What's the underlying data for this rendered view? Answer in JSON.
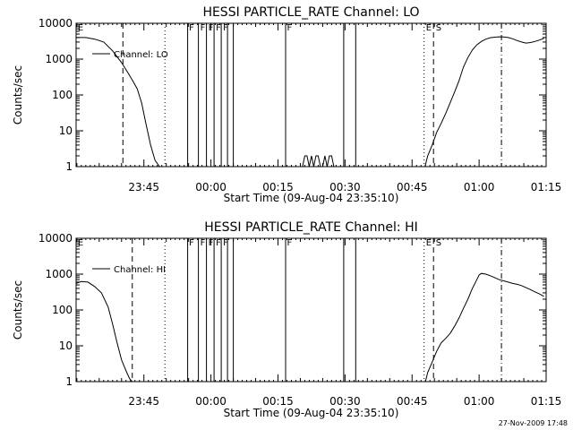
{
  "footer_timestamp": "27-Nov-2009 17:48",
  "chart_data": [
    {
      "type": "line",
      "title": "HESSI PARTICLE_RATE Channel: LO",
      "ylabel": "Counts/sec",
      "xlabel": "Start Time (09-Aug-04 23:35:10)",
      "xlim": [
        -5.17,
        100.0
      ],
      "ylim": [
        1,
        10000
      ],
      "yscale": "log",
      "xtick_values": [
        10,
        25,
        40,
        55,
        70,
        85,
        100
      ],
      "xtick_labels": [
        "23:45",
        "00:00",
        "00:15",
        "00:30",
        "00:45",
        "01:00",
        "01:15"
      ],
      "ytick_values": [
        1,
        10,
        100,
        1000,
        10000
      ],
      "ytick_labels": [
        "1",
        "10",
        "100",
        "1000",
        "10000"
      ],
      "legend": {
        "label": "Channel: LO",
        "placement": "top-left"
      },
      "series": [
        {
          "name": "Channel: LO",
          "x": [
            -5.2,
            -3.0,
            -1.0,
            1.0,
            3.0,
            5.0,
            6.5,
            7.5,
            8.5,
            9.5,
            10.5,
            11.5,
            12.5,
            13.5
          ],
          "y": [
            4000,
            4000,
            3600,
            3000,
            1700,
            800,
            400,
            250,
            150,
            60,
            15,
            4,
            1.5,
            1
          ]
        },
        {
          "name": "",
          "x": [
            19.8,
            19.8,
            22.2,
            22.2,
            24.0,
            24.0,
            25.7,
            25.7,
            27.3,
            27.3,
            28.7,
            28.7,
            30.0,
            30.0,
            41.7,
            41.7,
            54.7,
            54.7,
            57.4,
            57.4
          ],
          "y": [
            1,
            10000,
            10000,
            1,
            1,
            10000,
            10000,
            1,
            1,
            10000,
            10000,
            1,
            1,
            10000,
            10000,
            1,
            1,
            10000,
            10000,
            1
          ]
        },
        {
          "name": "",
          "x": [
            44.5,
            45.5,
            46.0,
            46.5,
            47.0,
            47.5,
            48.0,
            48.5,
            49.0,
            49.5,
            50.0,
            50.5,
            51.0,
            51.5,
            52.0,
            52.5,
            53.0
          ],
          "y": [
            1,
            1,
            2,
            2,
            1,
            2,
            1,
            2,
            2,
            1,
            1,
            2,
            1,
            2,
            2,
            1,
            1
          ]
        },
        {
          "name": "",
          "x": [
            72.9,
            73.5,
            74.5,
            75.5,
            76.5,
            77.5,
            78.5,
            79.5,
            80.5,
            81.5,
            82.5,
            83.5,
            84.5,
            85.5,
            86.5,
            87.5,
            88.5,
            89.5,
            90.5,
            91.5,
            92.5,
            93.5,
            94.5,
            95.5,
            96.5,
            97.5,
            98.5,
            99.5
          ],
          "y": [
            1,
            2,
            4,
            9,
            16,
            30,
            60,
            120,
            250,
            600,
            1100,
            1800,
            2500,
            3100,
            3600,
            3950,
            4100,
            4200,
            4150,
            4000,
            3700,
            3300,
            3000,
            2800,
            2900,
            3100,
            3400,
            3800
          ]
        }
      ],
      "vlines": [
        {
          "x": 5.3,
          "style": "dashed"
        },
        {
          "x": 14.7,
          "style": "dotted"
        },
        {
          "x": 72.7,
          "style": "dotted"
        },
        {
          "x": 74.8,
          "style": "dashed"
        },
        {
          "x": 90.0,
          "style": "dashdot"
        }
      ],
      "flags": [
        {
          "x": -5.0,
          "label": "E"
        },
        {
          "x": 19.9,
          "label": "F"
        },
        {
          "x": 22.4,
          "label": "F"
        },
        {
          "x": 24.2,
          "label": "F"
        },
        {
          "x": 25.9,
          "label": "F"
        },
        {
          "x": 27.5,
          "label": "F"
        },
        {
          "x": 41.8,
          "label": "F"
        },
        {
          "x": 72.9,
          "label": "E"
        },
        {
          "x": 75.1,
          "label": "S"
        }
      ]
    },
    {
      "type": "line",
      "title": "HESSI PARTICLE_RATE Channel: HI",
      "ylabel": "Counts/sec",
      "xlabel": "Start Time (09-Aug-04 23:35:10)",
      "xlim": [
        -5.17,
        100.0
      ],
      "ylim": [
        1,
        10000
      ],
      "yscale": "log",
      "xtick_values": [
        10,
        25,
        40,
        55,
        70,
        85,
        100
      ],
      "xtick_labels": [
        "23:45",
        "00:00",
        "00:15",
        "00:30",
        "00:45",
        "01:00",
        "01:15"
      ],
      "ytick_values": [
        1,
        10,
        100,
        1000,
        10000
      ],
      "ytick_labels": [
        "1",
        "10",
        "100",
        "1000",
        "10000"
      ],
      "legend": {
        "label": "Channel: HI",
        "placement": "top-left"
      },
      "series": [
        {
          "name": "Channel: HI",
          "x": [
            -5.2,
            -4.0,
            -2.5,
            -1.0,
            0.5,
            2.0,
            3.0,
            4.0,
            5.0,
            6.0,
            6.8,
            7.4
          ],
          "y": [
            550,
            620,
            600,
            450,
            300,
            120,
            40,
            12,
            4,
            2,
            1.2,
            1
          ]
        },
        {
          "name": "",
          "x": [
            19.8,
            19.8,
            22.2,
            22.2,
            24.0,
            24.0,
            25.7,
            25.7,
            27.3,
            27.3,
            28.7,
            28.7,
            30.0,
            30.0,
            41.7,
            41.7,
            54.7,
            54.7,
            57.4,
            57.4
          ],
          "y": [
            1,
            10000,
            10000,
            1,
            1,
            10000,
            10000,
            1,
            1,
            10000,
            10000,
            1,
            1,
            10000,
            10000,
            1,
            1,
            10000,
            10000,
            1
          ]
        },
        {
          "name": "",
          "x": [
            73.0,
            73.5,
            74.5,
            75.5,
            76.5,
            77.5,
            78.5,
            79.5,
            80.5,
            81.5,
            82.5,
            83.5,
            84.5,
            85.0,
            85.5,
            86.5,
            87.5,
            88.5,
            89.5,
            90.5,
            91.5,
            92.5,
            93.5,
            94.5,
            95.5,
            96.5,
            97.5,
            98.5,
            99.5
          ],
          "y": [
            1,
            1.8,
            3.5,
            7,
            12,
            16,
            22,
            35,
            60,
            110,
            200,
            400,
            700,
            950,
            1050,
            1000,
            900,
            800,
            700,
            650,
            600,
            550,
            520,
            480,
            420,
            370,
            320,
            280,
            240
          ]
        }
      ],
      "vlines": [
        {
          "x": 7.4,
          "style": "dashed"
        },
        {
          "x": 14.7,
          "style": "dotted"
        },
        {
          "x": 72.7,
          "style": "dotted"
        },
        {
          "x": 74.8,
          "style": "dashed"
        },
        {
          "x": 90.0,
          "style": "dashdot"
        }
      ],
      "flags": [
        {
          "x": -5.0,
          "label": "E"
        },
        {
          "x": 19.9,
          "label": "F"
        },
        {
          "x": 22.4,
          "label": "F"
        },
        {
          "x": 24.2,
          "label": "F"
        },
        {
          "x": 25.9,
          "label": "F"
        },
        {
          "x": 27.5,
          "label": "F"
        },
        {
          "x": 41.8,
          "label": "F"
        },
        {
          "x": 72.9,
          "label": "E"
        },
        {
          "x": 75.1,
          "label": "S"
        }
      ]
    }
  ]
}
